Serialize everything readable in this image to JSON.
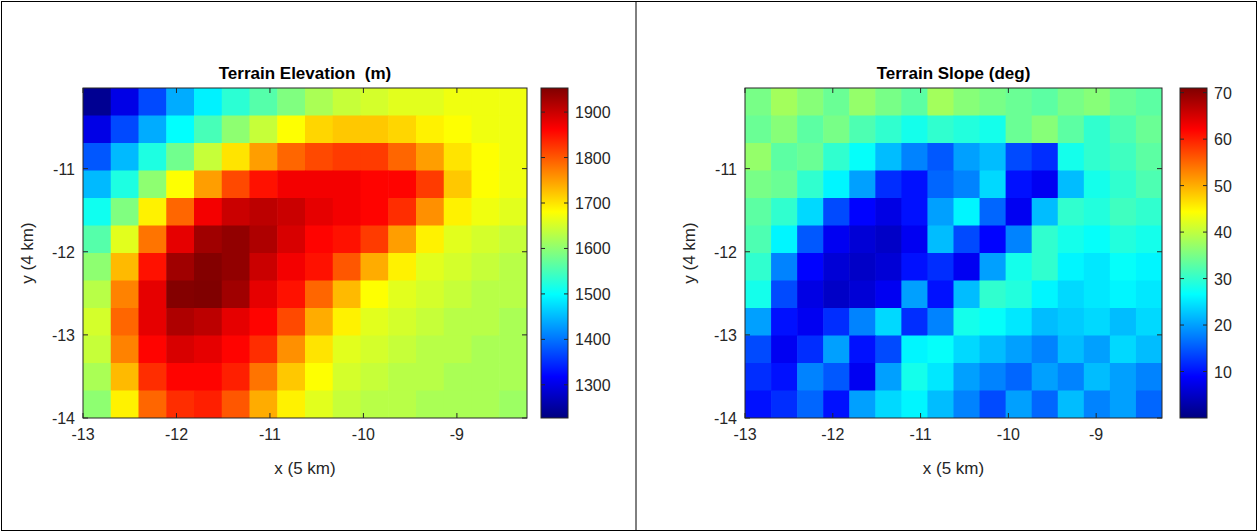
{
  "chart_data": [
    {
      "type": "heatmap",
      "title": "Terrain Elevation  (m)",
      "xlabel": "x (5 km)",
      "ylabel": "y (4 km)",
      "xlim": [
        -13,
        -8.25
      ],
      "xticks": [
        -13,
        -12,
        -11,
        -10,
        -9
      ],
      "ylim": [
        -14,
        -10.03
      ],
      "yticks": [
        -14,
        -13,
        -12,
        -11
      ],
      "grid": false,
      "color": "jet",
      "colorbar_range": [
        1227,
        1953
      ],
      "colorbar_ticks": [
        1300,
        1400,
        1500,
        1600,
        1700,
        1800,
        1900
      ],
      "values": [
        [
          1240,
          1300,
          1370,
          1440,
          1490,
          1530,
          1560,
          1590,
          1620,
          1640,
          1650,
          1660,
          1660,
          1670,
          1670,
          1670
        ],
        [
          1300,
          1370,
          1440,
          1500,
          1550,
          1600,
          1640,
          1680,
          1710,
          1720,
          1720,
          1710,
          1690,
          1680,
          1670,
          1670
        ],
        [
          1380,
          1450,
          1520,
          1580,
          1640,
          1700,
          1750,
          1790,
          1810,
          1820,
          1820,
          1790,
          1750,
          1700,
          1680,
          1670
        ],
        [
          1450,
          1520,
          1600,
          1680,
          1750,
          1810,
          1850,
          1870,
          1870,
          1870,
          1860,
          1860,
          1820,
          1720,
          1680,
          1670
        ],
        [
          1510,
          1590,
          1690,
          1790,
          1870,
          1900,
          1910,
          1900,
          1880,
          1870,
          1860,
          1830,
          1760,
          1690,
          1670,
          1660
        ],
        [
          1560,
          1660,
          1780,
          1880,
          1930,
          1940,
          1920,
          1890,
          1860,
          1850,
          1820,
          1750,
          1690,
          1660,
          1650,
          1640
        ],
        [
          1600,
          1730,
          1850,
          1930,
          1950,
          1940,
          1900,
          1870,
          1850,
          1800,
          1740,
          1690,
          1660,
          1650,
          1640,
          1630
        ],
        [
          1630,
          1770,
          1880,
          1950,
          1960,
          1930,
          1880,
          1850,
          1790,
          1730,
          1680,
          1660,
          1650,
          1640,
          1630,
          1630
        ],
        [
          1650,
          1790,
          1880,
          1920,
          1910,
          1880,
          1860,
          1810,
          1740,
          1690,
          1660,
          1650,
          1640,
          1630,
          1630,
          1620
        ],
        [
          1640,
          1770,
          1860,
          1890,
          1880,
          1860,
          1830,
          1760,
          1700,
          1660,
          1650,
          1640,
          1630,
          1630,
          1620,
          1620
        ],
        [
          1620,
          1730,
          1830,
          1860,
          1860,
          1840,
          1780,
          1720,
          1680,
          1650,
          1640,
          1630,
          1630,
          1620,
          1620,
          1620
        ],
        [
          1600,
          1690,
          1790,
          1830,
          1840,
          1800,
          1740,
          1690,
          1660,
          1640,
          1630,
          1630,
          1620,
          1620,
          1620,
          1610
        ]
      ]
    },
    {
      "type": "heatmap",
      "title": "Terrain Slope (deg)",
      "xlabel": "x (5 km)",
      "ylabel": "y (4 km)",
      "xlim": [
        -13,
        -8.25
      ],
      "xticks": [
        -13,
        -12,
        -11,
        -10,
        -9
      ],
      "ylim": [
        -14,
        -10.03
      ],
      "yticks": [
        -14,
        -13,
        -12,
        -11
      ],
      "grid": false,
      "color": "jet",
      "colorbar_range": [
        0,
        71
      ],
      "colorbar_ticks": [
        10,
        20,
        30,
        40,
        50,
        60,
        70
      ],
      "values": [
        [
          35,
          38,
          36,
          34,
          37,
          35,
          33,
          38,
          36,
          35,
          34,
          33,
          35,
          36,
          34,
          33
        ],
        [
          34,
          36,
          33,
          35,
          32,
          30,
          28,
          30,
          29,
          28,
          34,
          36,
          33,
          30,
          32,
          34
        ],
        [
          37,
          33,
          34,
          30,
          27,
          22,
          18,
          15,
          20,
          22,
          14,
          12,
          28,
          30,
          31,
          33
        ],
        [
          35,
          34,
          30,
          26,
          20,
          12,
          10,
          16,
          18,
          24,
          10,
          8,
          22,
          28,
          30,
          32
        ],
        [
          33,
          30,
          24,
          14,
          9,
          7,
          10,
          20,
          26,
          16,
          8,
          22,
          30,
          29,
          31,
          30
        ],
        [
          32,
          26,
          15,
          8,
          6,
          5,
          8,
          22,
          14,
          9,
          18,
          30,
          28,
          27,
          29,
          28
        ],
        [
          30,
          18,
          9,
          6,
          5,
          6,
          10,
          12,
          8,
          20,
          28,
          30,
          26,
          25,
          27,
          26
        ],
        [
          28,
          14,
          7,
          5,
          6,
          8,
          20,
          10,
          22,
          30,
          29,
          26,
          24,
          25,
          26,
          25
        ],
        [
          20,
          10,
          8,
          12,
          18,
          24,
          12,
          18,
          28,
          27,
          25,
          22,
          23,
          24,
          22,
          24
        ],
        [
          14,
          8,
          12,
          20,
          10,
          14,
          26,
          27,
          24,
          22,
          20,
          18,
          22,
          20,
          24,
          22
        ],
        [
          12,
          10,
          18,
          15,
          8,
          20,
          28,
          25,
          20,
          18,
          16,
          20,
          18,
          22,
          20,
          18
        ],
        [
          10,
          12,
          16,
          10,
          20,
          24,
          26,
          22,
          18,
          14,
          20,
          16,
          22,
          18,
          20,
          16
        ]
      ]
    }
  ]
}
